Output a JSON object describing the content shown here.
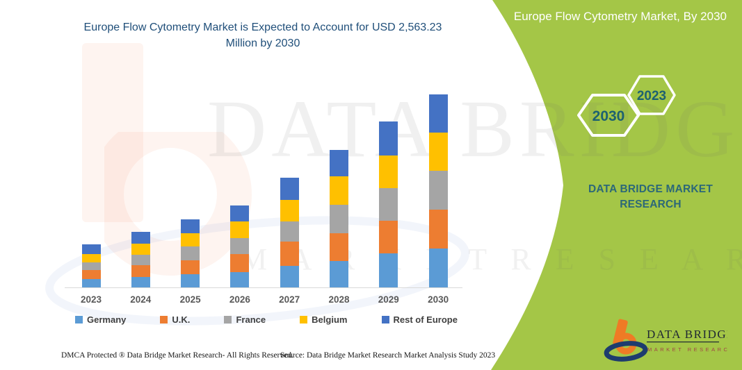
{
  "chart_data": {
    "type": "bar",
    "stacked": true,
    "title": "Europe Flow Cytometry Market is Expected to Account for USD 2,563.23 Million by 2030",
    "categories": [
      "2023",
      "2024",
      "2025",
      "2026",
      "2027",
      "2028",
      "2029",
      "2030"
    ],
    "series": [
      {
        "name": "Germany",
        "color": "#5B9BD5",
        "values": [
          112,
          142,
          178,
          202,
          287,
          355,
          452,
          515.23
        ]
      },
      {
        "name": "U.K.",
        "color": "#ED7D31",
        "values": [
          116,
          150,
          184,
          238,
          318,
          364,
          432,
          516
        ]
      },
      {
        "name": "France",
        "color": "#A5A5A5",
        "values": [
          108,
          144,
          180,
          218,
          268,
          382,
          434,
          520
        ]
      },
      {
        "name": "Belgium",
        "color": "#FFC000",
        "values": [
          106,
          146,
          176,
          220,
          292,
          377,
          438,
          508
        ]
      },
      {
        "name": "Rest of Europe",
        "color": "#4472C4",
        "values": [
          128,
          153,
          187,
          207,
          295,
          344,
          452,
          504
        ]
      }
    ],
    "totals": [
      570,
      735,
      905,
      1085,
      1460,
      1822,
      2208,
      2563.23
    ],
    "units": "USD Million",
    "ylim": [
      0,
      2563.23
    ],
    "grid": false,
    "y_axis_visible": false,
    "legend_position": "bottom"
  },
  "left": {
    "title": "Europe Flow Cytometry Market is Expected to Account for USD 2,563.23 Million by 2030",
    "watermark_line1": "DATA BRIDGE",
    "watermark_line2": "M A R K E T   R E S E A R C H",
    "footer_left": "DMCA Protected ® Data Bridge Market Research-  All Rights Reserved.",
    "footer_right": "Source: Data Bridge Market Research  Market Analysis Study 2023"
  },
  "panel": {
    "title": "Europe Flow Cytometry Market, By 2030",
    "hex_small_label": "2023",
    "hex_large_label": "2030",
    "brand_text": "DATA BRIDGE MARKET RESEARCH",
    "logo_title": "DATA BRIDGE",
    "logo_subtitle": "MARKET RESEARCH",
    "colors": {
      "panel_green": "#A4C647",
      "hex_outline": "#FFFFFF",
      "hex_year_text": "#1D6170",
      "brand_teal": "#2C6878",
      "logo_orange": "#EF7B25",
      "logo_navy": "#1E3C6E",
      "logo_red": "#A04545",
      "title_blue": "#1F4E79"
    }
  }
}
